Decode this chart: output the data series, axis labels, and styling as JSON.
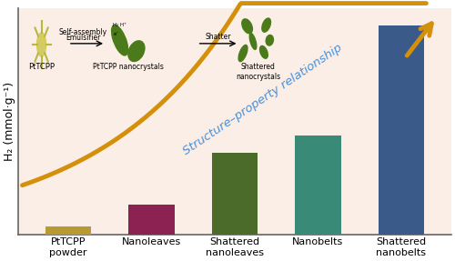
{
  "categories": [
    "PtTCPP\npowder",
    "Nanoleaves",
    "Shattered\nnanoleaves",
    "Nanobelts",
    "Shattered\nnanobelts"
  ],
  "values": [
    0.04,
    0.14,
    0.38,
    0.46,
    0.97
  ],
  "bar_colors": [
    "#b89a30",
    "#8b2252",
    "#4a6b2a",
    "#3a8a78",
    "#3a5a8a"
  ],
  "bar_width": 0.55,
  "ylim": [
    0,
    1.05
  ],
  "ylabel": "H₂ (mmol·g⁻¹)",
  "curve_color": "#d4900a",
  "curve_label": "Structure–property relationship",
  "curve_label_color": "#4a90d9",
  "background_color": "#faeee6",
  "figure_bg": "#ffffff",
  "ylabel_fontsize": 9,
  "tick_label_fontsize": 8,
  "curve_label_fontsize": 9.5,
  "spine_color": "#666666"
}
